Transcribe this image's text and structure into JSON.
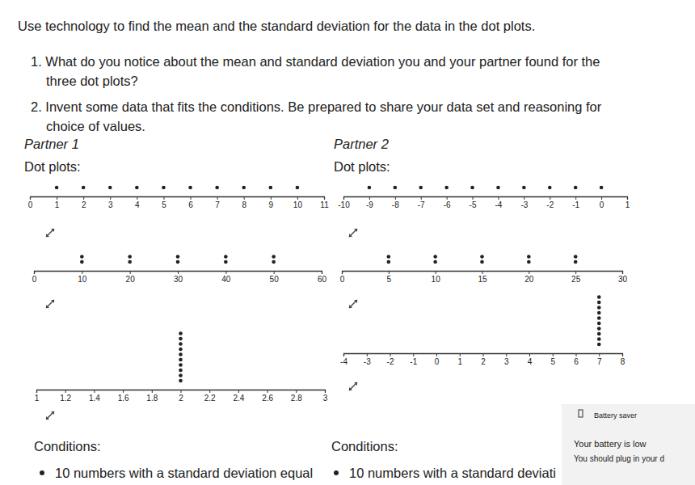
{
  "instructions": "Use technology to find the mean and the standard deviation for the data in the dot plots.",
  "questions": [
    [
      "1. What do you notice about the mean and standard deviation you and your partner found for the",
      "three dot plots?"
    ],
    [
      "2. Invent some data that fits the conditions. Be prepared to share your data set and reasoning for",
      "choice of values."
    ]
  ],
  "partners": [
    {
      "title": "Partner 1",
      "subtitle": "Dot plots:",
      "conditions_heading": "Conditions:",
      "condition": "10 numbers with a standard deviation equal"
    },
    {
      "title": "Partner 2",
      "subtitle": "Dot plots:",
      "conditions_heading": "Conditions:",
      "condition": "10 numbers with a standard deviati"
    }
  ],
  "chart_data": [
    {
      "type": "dot",
      "xlim": [
        0,
        11
      ],
      "xticks": [
        0,
        1,
        2,
        3,
        4,
        5,
        6,
        7,
        8,
        9,
        10,
        11
      ],
      "values": [
        1,
        2,
        3,
        4,
        5,
        6,
        7,
        8,
        9,
        10
      ],
      "color": "#222222"
    },
    {
      "type": "dot",
      "xlim": [
        0,
        60
      ],
      "xticks": [
        0,
        10,
        20,
        30,
        40,
        50,
        60
      ],
      "values": [
        10,
        10,
        20,
        20,
        30,
        30,
        40,
        40,
        50,
        50
      ],
      "color": "#222222"
    },
    {
      "type": "dot",
      "xlim": [
        1,
        3
      ],
      "xticks": [
        1,
        1.2,
        1.4,
        1.6,
        1.8,
        2,
        2.2,
        2.4,
        2.6,
        2.8,
        3
      ],
      "values": [
        2,
        2,
        2,
        2,
        2,
        2,
        2,
        2,
        2,
        2
      ],
      "color": "#222222"
    },
    {
      "type": "dot",
      "xlim": [
        -10,
        1
      ],
      "xticks": [
        -10,
        -9,
        -8,
        -7,
        -6,
        -5,
        -4,
        -3,
        -2,
        -1,
        0,
        1
      ],
      "values": [
        -9,
        -8,
        -7,
        -6,
        -5,
        -4,
        -3,
        -2,
        -1,
        0
      ],
      "color": "#222222"
    },
    {
      "type": "dot",
      "xlim": [
        0,
        30
      ],
      "xticks": [
        0,
        5,
        10,
        15,
        20,
        25,
        30
      ],
      "values": [
        5,
        5,
        10,
        10,
        15,
        15,
        20,
        20,
        25,
        25
      ],
      "color": "#222222"
    },
    {
      "type": "dot",
      "xlim": [
        -4,
        8
      ],
      "xticks": [
        -4,
        -3,
        -2,
        -1,
        0,
        1,
        2,
        3,
        4,
        5,
        6,
        7,
        8
      ],
      "values": [
        7,
        7,
        7,
        7,
        7,
        7,
        7,
        7,
        7,
        7
      ],
      "color": "#222222"
    }
  ],
  "notification": {
    "title": "Battery saver",
    "lines": [
      "Your battery is low",
      "You should plug in your d"
    ]
  }
}
